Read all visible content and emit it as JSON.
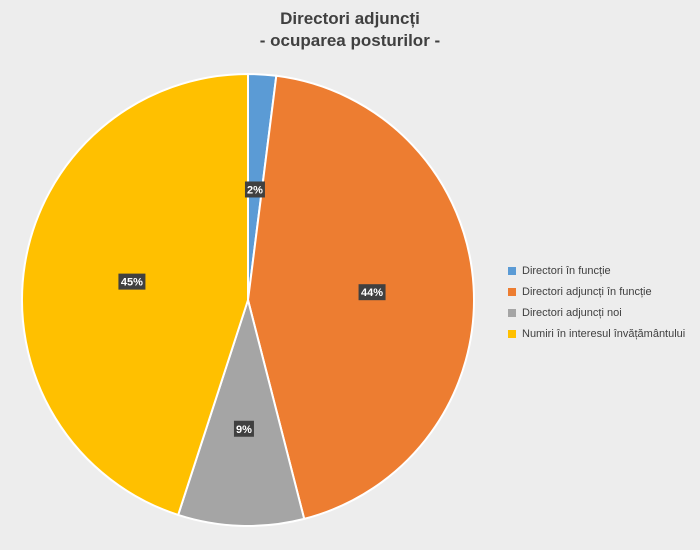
{
  "chart_data": {
    "type": "pie",
    "title": "Directori adjuncți",
    "subtitle": "- ocuparea posturilor -",
    "categories": [
      "Directori în funcție",
      "Directori adjuncți în funcție",
      "Directori adjuncți noi",
      "Numiri în interesul învățământului"
    ],
    "values": [
      2,
      44,
      9,
      45
    ],
    "data_labels": [
      "2%",
      "44%",
      "9%",
      "45%"
    ],
    "colors": [
      "#5b9bd5",
      "#ed7d31",
      "#a5a5a5",
      "#ffc000"
    ],
    "legend_position": "right",
    "start_angle": "top, clockwise"
  }
}
